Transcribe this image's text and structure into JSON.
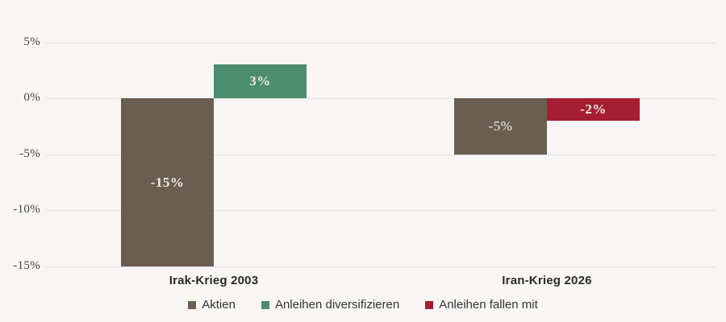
{
  "chart_data": {
    "type": "bar",
    "categories": [
      "Irak-Krieg 2003",
      "Iran-Krieg 2026"
    ],
    "series": [
      {
        "name": "Aktien",
        "color": "#6a5e50",
        "values": [
          -15,
          -5
        ]
      },
      {
        "name": "Anleihen diversifizieren",
        "color": "#4c8c6e",
        "values": [
          3,
          null
        ]
      },
      {
        "name": "Anleihen fallen mit",
        "color": "#a51e32",
        "values": [
          null,
          -2
        ]
      }
    ],
    "bar_labels": [
      [
        {
          "text": "-15%",
          "bold": true
        },
        {
          "text": "-5%",
          "bold": false
        }
      ],
      [
        {
          "text": "3%",
          "bold": true
        },
        null
      ],
      [
        null,
        {
          "text": "-2%",
          "bold": true
        }
      ]
    ],
    "y_ticks": [
      {
        "label": "5%",
        "value": 5
      },
      {
        "label": "0%",
        "value": 0
      },
      {
        "label": "-5%",
        "value": -5
      },
      {
        "label": "-10%",
        "value": -10
      },
      {
        "label": "-15%",
        "value": -15
      }
    ],
    "ylim": [
      -15,
      5
    ],
    "grid": true,
    "legend_position": "bottom"
  },
  "colors": {
    "background": "#f7f6f4",
    "gridline": "#e4e3e1",
    "tick_text": "#454545",
    "category_text": "#2a2a28",
    "legend_text": "#333333",
    "bar_label_text": "#f1ede5"
  }
}
